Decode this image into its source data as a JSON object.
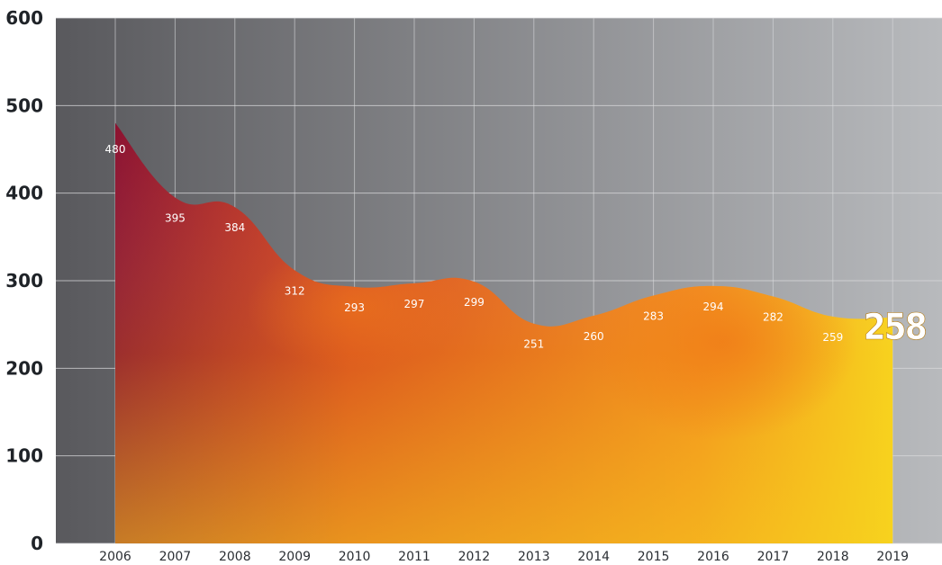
{
  "chart_data": {
    "type": "area",
    "title": "",
    "xlabel": "",
    "ylabel": "",
    "x": [
      "2006",
      "2007",
      "2008",
      "2009",
      "2010",
      "2011",
      "2012",
      "2013",
      "2014",
      "2015",
      "2016",
      "2017",
      "2018",
      "2019"
    ],
    "y_ticks": [
      "0",
      "100",
      "200",
      "300",
      "400",
      "500",
      "600"
    ],
    "ylim": [
      0,
      600
    ],
    "grid": true,
    "series": [
      {
        "name": "",
        "values": [
          480,
          395,
          384,
          312,
          293,
          297,
          299,
          251,
          260,
          283,
          294,
          282,
          259,
          258
        ],
        "labels": [
          "480",
          "395",
          "384",
          "312",
          "293",
          "297",
          "299",
          "251",
          "260",
          "283",
          "294",
          "282",
          "259",
          "258"
        ]
      }
    ],
    "highlight_index": 13,
    "colors": {
      "background_dark": "#59595d",
      "background_light": "#b8babd",
      "area_dark": "#8c1230",
      "area_mid": "#f28a1e",
      "area_light": "#f7d21e",
      "grid": "#d9dadc"
    }
  }
}
